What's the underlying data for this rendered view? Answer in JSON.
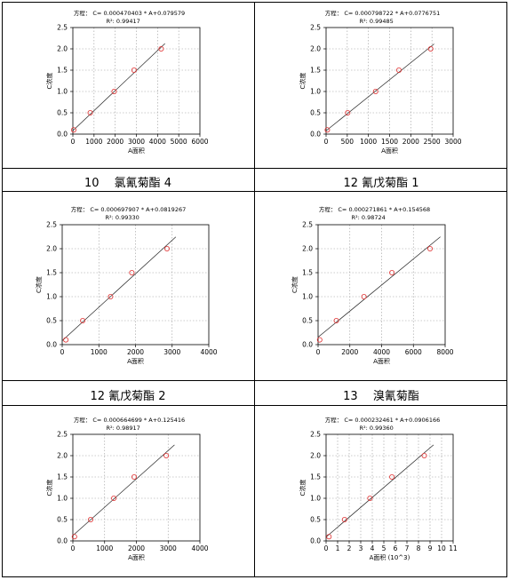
{
  "captions": [
    "10　 氯氰菊酯 4",
    "12 氰戊菊酯 1",
    "12 氰戊菊酯 2",
    "13　 溴氰菊酯"
  ],
  "chart_data": [
    {
      "type": "scatter",
      "equation": "方程：  C= 0.000470403 * A+0.079579",
      "r2": "R²: 0.99417",
      "xlabel": "A面积",
      "ylabel": "C浓度",
      "xlim": [
        0,
        6000
      ],
      "ylim": [
        0,
        2.5
      ],
      "xticks": [
        0,
        1000,
        2000,
        3000,
        4000,
        5000,
        6000
      ],
      "yticks": [
        0.0,
        0.5,
        1.0,
        1.5,
        2.0,
        2.5
      ],
      "x": [
        40,
        820,
        1950,
        2890,
        4170
      ],
      "y": [
        0.1,
        0.5,
        1.0,
        1.5,
        2.0
      ],
      "fit": {
        "slope": 0.000470403,
        "intercept": 0.079579,
        "x0": 0,
        "x1": 4350
      }
    },
    {
      "type": "scatter",
      "equation": "方程：  C= 0.000798722 * A+0.0776751",
      "r2": "R²: 0.99485",
      "xlabel": "A面积",
      "ylabel": "C浓度",
      "xlim": [
        0,
        3000
      ],
      "ylim": [
        0,
        2.5
      ],
      "xticks": [
        0,
        500,
        1000,
        1500,
        2000,
        2500,
        3000
      ],
      "yticks": [
        0.0,
        0.5,
        1.0,
        1.5,
        2.0,
        2.5
      ],
      "x": [
        30,
        510,
        1170,
        1720,
        2470
      ],
      "y": [
        0.1,
        0.5,
        1.0,
        1.5,
        2.0
      ],
      "fit": {
        "slope": 0.000798722,
        "intercept": 0.0776751,
        "x0": 0,
        "x1": 2550
      }
    },
    {
      "type": "scatter",
      "equation": "方程：  C= 0.000697907 * A+0.0819267",
      "r2": "R²: 0.99330",
      "xlabel": "A面积",
      "ylabel": "C浓度",
      "xlim": [
        0,
        4000
      ],
      "ylim": [
        0,
        2.5
      ],
      "xticks": [
        0,
        1000,
        2000,
        3000,
        4000
      ],
      "yticks": [
        0.0,
        0.5,
        1.0,
        1.5,
        2.0,
        2.5
      ],
      "x": [
        100,
        560,
        1320,
        1900,
        2860
      ],
      "y": [
        0.1,
        0.5,
        1.0,
        1.5,
        2.0
      ],
      "fit": {
        "slope": 0.000697907,
        "intercept": 0.0819267,
        "x0": 0,
        "x1": 3100
      }
    },
    {
      "type": "scatter",
      "equation": "方程：  C= 0.000271861 * A+0.154568",
      "r2": "R²: 0.98724",
      "xlabel": "A面积",
      "ylabel": "C浓度",
      "xlim": [
        0,
        8000
      ],
      "ylim": [
        0,
        2.5
      ],
      "xticks": [
        0,
        2000,
        4000,
        6000,
        8000
      ],
      "yticks": [
        0.0,
        0.5,
        1.0,
        1.5,
        2.0,
        2.5
      ],
      "x": [
        100,
        1150,
        2890,
        4650,
        7050
      ],
      "y": [
        0.1,
        0.5,
        1.0,
        1.5,
        2.0
      ],
      "fit": {
        "slope": 0.000271861,
        "intercept": 0.154568,
        "x0": 0,
        "x1": 7700
      }
    },
    {
      "type": "scatter",
      "equation": "方程：  C= 0.000664699 * A+0.125416",
      "r2": "R²: 0.98917",
      "xlabel": "A面积",
      "ylabel": "C浓度",
      "xlim": [
        0,
        4000
      ],
      "ylim": [
        0,
        2.5
      ],
      "xticks": [
        0,
        1000,
        2000,
        3000,
        4000
      ],
      "yticks": [
        0.0,
        0.5,
        1.0,
        1.5,
        2.0,
        2.5
      ],
      "x": [
        50,
        560,
        1290,
        1930,
        2940
      ],
      "y": [
        0.1,
        0.5,
        1.0,
        1.5,
        2.0
      ],
      "fit": {
        "slope": 0.000664699,
        "intercept": 0.125416,
        "x0": 0,
        "x1": 3200
      }
    },
    {
      "type": "scatter",
      "equation": "方程：  C= 0.000232461 * A+0.0906166",
      "r2": "R²: 0.99360",
      "xlabel": "A面积  (10^3)",
      "ylabel": "C浓度",
      "xlim": [
        0,
        11
      ],
      "ylim": [
        0,
        2.5
      ],
      "xticks": [
        0,
        1,
        2,
        3,
        4,
        5,
        6,
        7,
        8,
        9,
        10,
        11
      ],
      "yticks": [
        0.0,
        0.5,
        1.0,
        1.5,
        2.0,
        2.5
      ],
      "x": [
        0.25,
        1.6,
        3.8,
        5.7,
        8.5
      ],
      "y": [
        0.1,
        0.5,
        1.0,
        1.5,
        2.0
      ],
      "fit": {
        "slope": 0.232461,
        "intercept": 0.0906166,
        "x0": 0,
        "x1": 9.3
      }
    }
  ]
}
